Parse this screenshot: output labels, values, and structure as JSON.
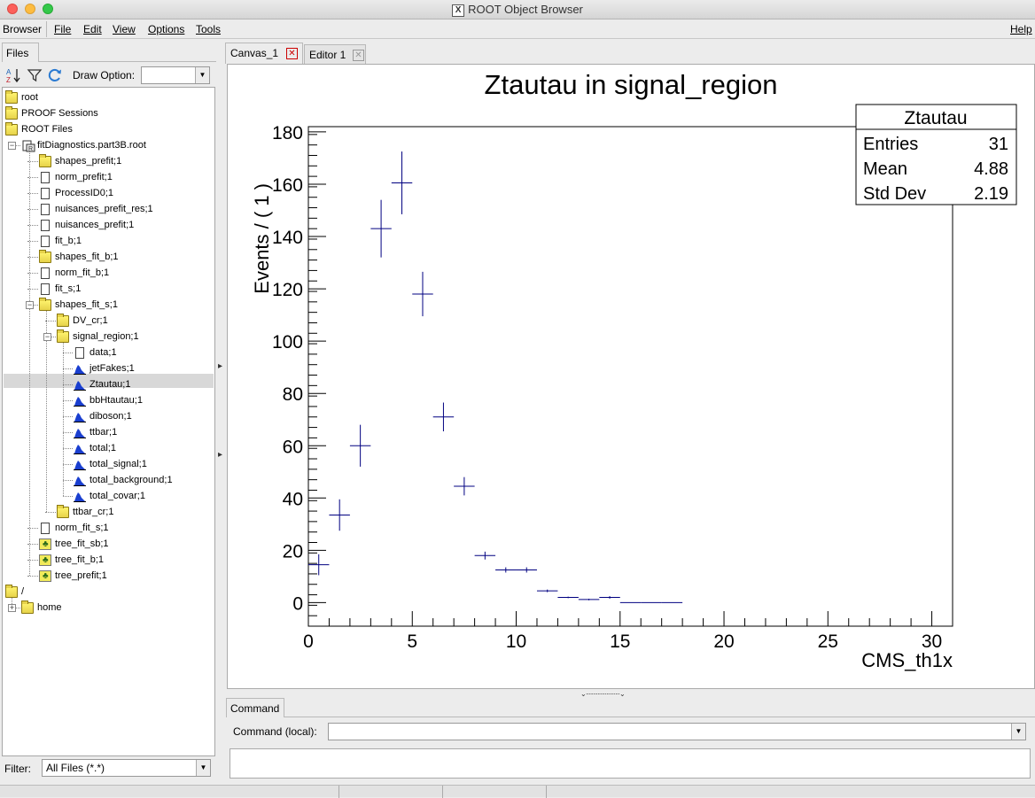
{
  "window": {
    "title": "ROOT Object Browser",
    "x_glyph": "X"
  },
  "menubar": {
    "browser": "Browser",
    "file": "File",
    "edit": "Edit",
    "view": "View",
    "options": "Options",
    "tools": "Tools",
    "help": "Help"
  },
  "left_panel": {
    "tab": "Files",
    "draw_option_label": "Draw Option:",
    "draw_option_value": "",
    "filter_label": "Filter:",
    "filter_value": "All Files (*.*)"
  },
  "tree": [
    {
      "label": "root",
      "icon": "folder-icon"
    },
    {
      "label": "PROOF Sessions",
      "icon": "folder-icon"
    },
    {
      "label": "ROOT Files",
      "icon": "folder-icon"
    },
    {
      "label": "fitDiagnostics.part3B.root",
      "icon": "root-file-icon"
    },
    {
      "label": "shapes_prefit;1",
      "icon": "folder-icon"
    },
    {
      "label": "norm_prefit;1",
      "icon": "object-icon"
    },
    {
      "label": "ProcessID0;1",
      "icon": "object-icon"
    },
    {
      "label": "nuisances_prefit_res;1",
      "icon": "object-icon"
    },
    {
      "label": "nuisances_prefit;1",
      "icon": "object-icon"
    },
    {
      "label": "fit_b;1",
      "icon": "object-icon"
    },
    {
      "label": "shapes_fit_b;1",
      "icon": "folder-icon"
    },
    {
      "label": "norm_fit_b;1",
      "icon": "object-icon"
    },
    {
      "label": "fit_s;1",
      "icon": "object-icon"
    },
    {
      "label": "shapes_fit_s;1",
      "icon": "folder-icon"
    },
    {
      "label": "DV_cr;1",
      "icon": "folder-icon"
    },
    {
      "label": "signal_region;1",
      "icon": "folder-icon"
    },
    {
      "label": "data;1",
      "icon": "object-icon"
    },
    {
      "label": "jetFakes;1",
      "icon": "histogram-icon"
    },
    {
      "label": "Ztautau;1",
      "icon": "histogram-icon"
    },
    {
      "label": "bbHtautau;1",
      "icon": "histogram-icon"
    },
    {
      "label": "diboson;1",
      "icon": "histogram-icon"
    },
    {
      "label": "ttbar;1",
      "icon": "histogram-icon"
    },
    {
      "label": "total;1",
      "icon": "histogram-icon"
    },
    {
      "label": "total_signal;1",
      "icon": "histogram-icon"
    },
    {
      "label": "total_background;1",
      "icon": "histogram-icon"
    },
    {
      "label": "total_covar;1",
      "icon": "histogram2d-icon"
    },
    {
      "label": "ttbar_cr;1",
      "icon": "folder-icon"
    },
    {
      "label": "norm_fit_s;1",
      "icon": "object-icon"
    },
    {
      "label": "tree_fit_sb;1",
      "icon": "tree-icon"
    },
    {
      "label": "tree_fit_b;1",
      "icon": "tree-icon"
    },
    {
      "label": "tree_prefit;1",
      "icon": "tree-icon"
    },
    {
      "label": "/",
      "icon": "folder-icon"
    },
    {
      "label": "home",
      "icon": "folder-icon"
    }
  ],
  "tabs": {
    "canvas": "Canvas_1",
    "editor": "Editor 1",
    "command": "Command"
  },
  "command": {
    "label": "Command (local):",
    "value": ""
  },
  "colors": {
    "marker": "#000080",
    "close_red": "#cc0000"
  },
  "chart_data": {
    "type": "scatter",
    "title": "Ztautau in signal_region",
    "xlabel": "CMS_th1x",
    "ylabel": "Events / ( 1 )",
    "xlim": [
      0,
      31
    ],
    "ylim": [
      -9,
      182
    ],
    "xticks": [
      0,
      5,
      10,
      15,
      20,
      25,
      30
    ],
    "yticks": [
      0,
      20,
      40,
      60,
      80,
      100,
      120,
      140,
      160,
      180
    ],
    "points": [
      {
        "x": 0.5,
        "y": 14.5,
        "err": 4
      },
      {
        "x": 1.5,
        "y": 33.5,
        "err": 6
      },
      {
        "x": 2.5,
        "y": 60,
        "err": 8
      },
      {
        "x": 3.5,
        "y": 143,
        "err": 11
      },
      {
        "x": 4.5,
        "y": 160.5,
        "err": 12
      },
      {
        "x": 5.5,
        "y": 118,
        "err": 8.5
      },
      {
        "x": 6.5,
        "y": 71,
        "err": 5.5
      },
      {
        "x": 7.5,
        "y": 44.5,
        "err": 3.5
      },
      {
        "x": 8.5,
        "y": 18,
        "err": 1.5
      },
      {
        "x": 9.5,
        "y": 12.5,
        "err": 1
      },
      {
        "x": 10.5,
        "y": 12.5,
        "err": 1
      },
      {
        "x": 11.5,
        "y": 4.5,
        "err": 0.5
      },
      {
        "x": 12.5,
        "y": 2,
        "err": 0.3
      },
      {
        "x": 13.5,
        "y": 1.2,
        "err": 0.3
      },
      {
        "x": 14.5,
        "y": 2,
        "err": 0.5
      },
      {
        "x": 15.5,
        "y": 0,
        "err": 0
      },
      {
        "x": 16.5,
        "y": 0,
        "err": 0
      },
      {
        "x": 17.5,
        "y": 0,
        "err": 0
      }
    ],
    "stats": {
      "name": "Ztautau",
      "rows": [
        {
          "label": "Entries",
          "value": "31"
        },
        {
          "label": "Mean",
          "value": "4.88"
        },
        {
          "label": "Std Dev",
          "value": "2.19"
        }
      ]
    }
  }
}
